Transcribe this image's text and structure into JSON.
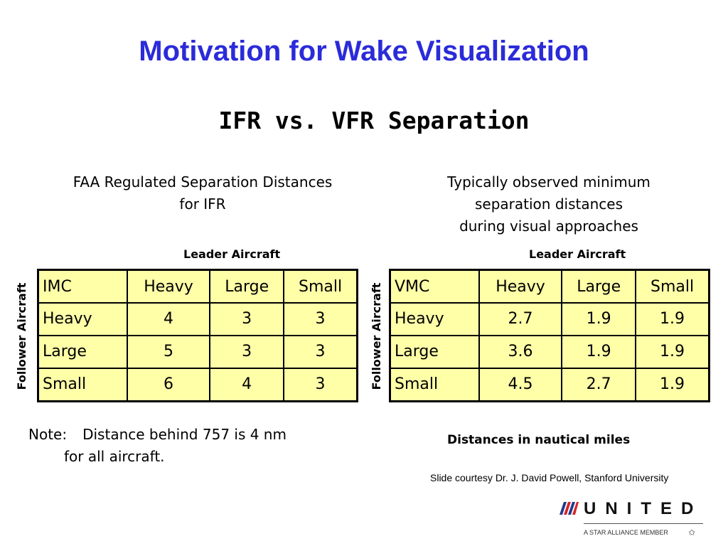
{
  "title": "Motivation for Wake Visualization",
  "subtitle": "IFR vs. VFR Separation",
  "left": {
    "caption_line1": "FAA Regulated Separation Distances",
    "caption_line2": "for IFR",
    "leader_label": "Leader Aircraft",
    "follower_label": "Follower Aircraft",
    "table": {
      "corner": "IMC",
      "columns": [
        "Heavy",
        "Large",
        "Small"
      ],
      "rows": [
        {
          "label": "Heavy",
          "values": [
            "4",
            "3",
            "3"
          ]
        },
        {
          "label": "Large",
          "values": [
            "5",
            "3",
            "3"
          ]
        },
        {
          "label": "Small",
          "values": [
            "6",
            "4",
            "3"
          ]
        }
      ]
    }
  },
  "right": {
    "caption_line1": "Typically observed minimum",
    "caption_line2": "separation distances",
    "caption_line3": "during visual approaches",
    "leader_label": "Leader Aircraft",
    "follower_label": "Follower Aircraft",
    "table": {
      "corner": "VMC",
      "columns": [
        "Heavy",
        "Large",
        "Small"
      ],
      "rows": [
        {
          "label": "Heavy",
          "values": [
            "2.7",
            "1.9",
            "1.9"
          ]
        },
        {
          "label": "Large",
          "values": [
            "3.6",
            "1.9",
            "1.9"
          ]
        },
        {
          "label": "Small",
          "values": [
            "4.5",
            "2.7",
            "1.9"
          ]
        }
      ]
    }
  },
  "note": {
    "label": "Note:",
    "line1": "Distance behind  757 is 4 nm",
    "line2": "for all aircraft."
  },
  "units": "Distances in nautical miles",
  "credit": "Slide courtesy Dr. J. David Powell, Stanford University",
  "logo": {
    "wordmark": "UNITED",
    "tagline": "A STAR ALLIANCE MEMBER",
    "icon": "united-tulip-logo-icon"
  },
  "colors": {
    "title": "#2b2bd9",
    "table_fill": "#ffffa8",
    "logo_blue": "#1f3a8a",
    "logo_red": "#d6262b"
  }
}
